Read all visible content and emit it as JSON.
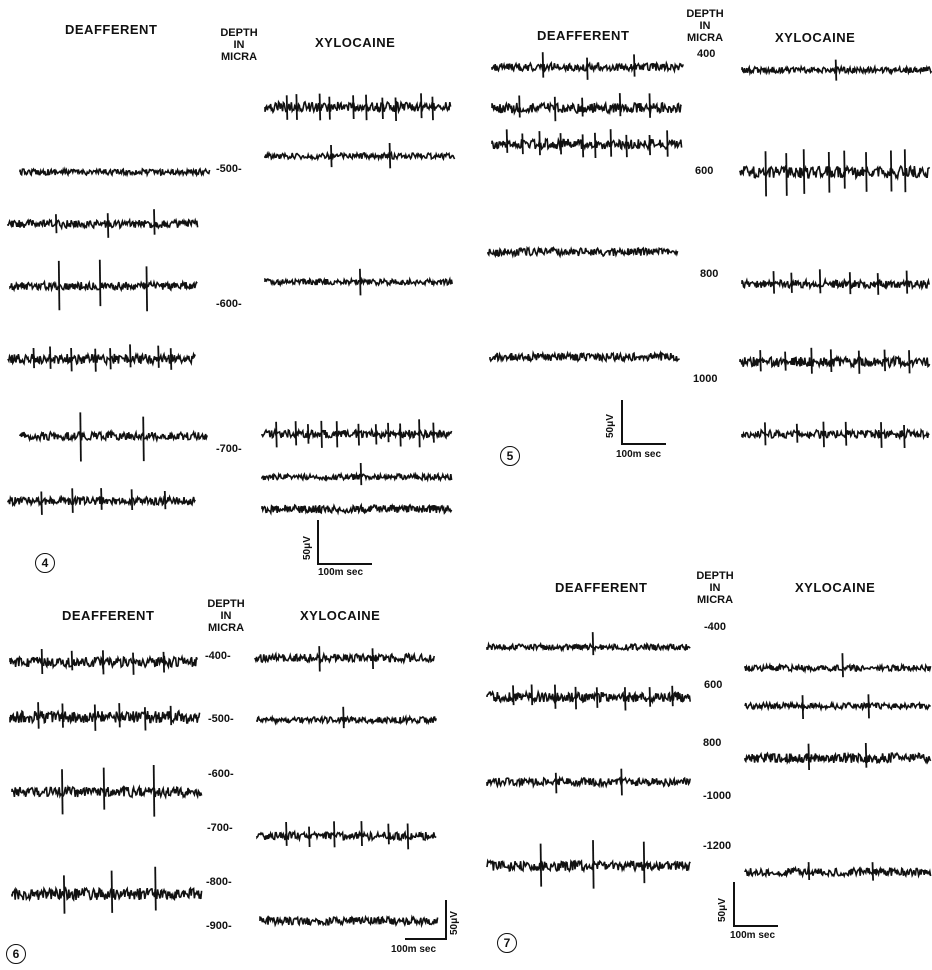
{
  "labels": {
    "deafferent": "DEAFFERENT",
    "xylocaine": "XYLOCAINE",
    "depth_line1": "DEPTH",
    "depth_line2": "IN",
    "depth_line3": "MICRA"
  },
  "panels": {
    "p4": {
      "number": "4",
      "depth_ticks": [
        "-500-",
        "-600-",
        "-700-"
      ],
      "scale_voltage": "50μV",
      "scale_time": "100m sec"
    },
    "p5": {
      "number": "5",
      "depth_ticks": [
        "400",
        "600",
        "800",
        "1000"
      ],
      "scale_voltage": "50μV",
      "scale_time": "100m sec"
    },
    "p6": {
      "number": "6",
      "depth_ticks": [
        "-400-",
        "-500-",
        "-600-",
        "-700-",
        "-800-",
        "-900-"
      ],
      "scale_voltage": "50μV",
      "scale_time": "100m sec"
    },
    "p7": {
      "number": "7",
      "depth_ticks": [
        "-400",
        "600",
        "800",
        "-1000",
        "-1200"
      ],
      "scale_voltage": "50μV",
      "scale_time": "100m sec"
    }
  }
}
